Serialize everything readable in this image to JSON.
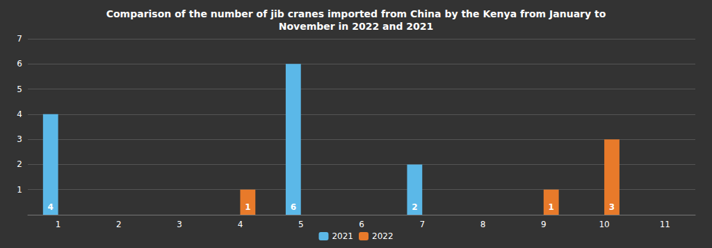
{
  "chart_data": {
    "type": "bar",
    "title": "Comparison of the number of jib cranes imported from China by the Kenya from January to\nNovember in 2022 and 2021",
    "categories": [
      "1",
      "2",
      "3",
      "4",
      "5",
      "6",
      "7",
      "8",
      "9",
      "10",
      "11"
    ],
    "series": [
      {
        "name": "2021",
        "color": "#5BB8E8",
        "values": [
          4,
          0,
          0,
          0,
          6,
          0,
          2,
          0,
          0,
          0,
          0
        ]
      },
      {
        "name": "2022",
        "color": "#E87A2A",
        "values": [
          0,
          0,
          0,
          1,
          0,
          0,
          0,
          0,
          1,
          3,
          0
        ]
      }
    ],
    "ylim": [
      0,
      7
    ],
    "yticks": [
      1,
      2,
      3,
      4,
      5,
      6,
      7
    ],
    "grid": true,
    "legend": "bottom",
    "data_labels": true
  }
}
